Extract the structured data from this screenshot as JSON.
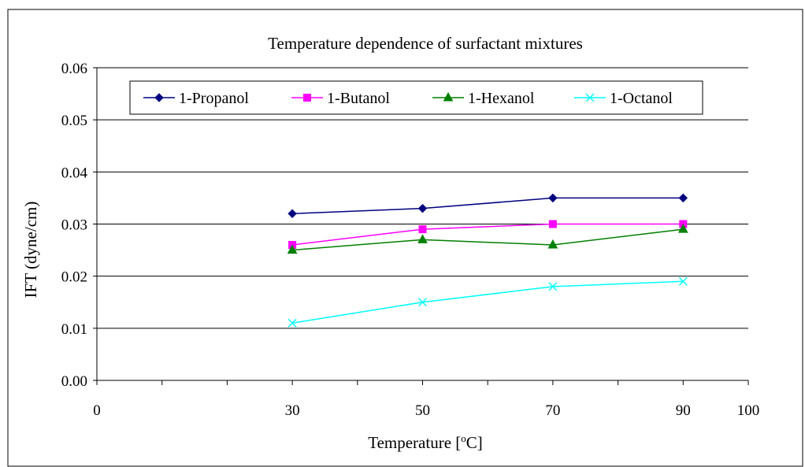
{
  "chart_data": {
    "type": "line",
    "title": "Temperature dependence of surfactant mixtures",
    "xlabel_parts": [
      "Temperature [",
      "o",
      "C]"
    ],
    "ylabel": "IFT (dyne/cm)",
    "xlim": [
      0,
      100
    ],
    "ylim": [
      0,
      0.06
    ],
    "x_ticks": [
      0,
      30,
      50,
      70,
      90,
      100
    ],
    "x_minor_ticks": [
      10,
      20,
      40,
      60,
      80
    ],
    "y_ticks": [
      "0.00",
      "0.01",
      "0.02",
      "0.03",
      "0.04",
      "0.05",
      "0.06"
    ],
    "grid": "horizontal",
    "legend_position": "top",
    "x": [
      30,
      50,
      70,
      90
    ],
    "series": [
      {
        "name": "1-Propanol",
        "values": [
          0.032,
          0.033,
          0.035,
          0.035
        ],
        "color": "#000080",
        "marker": "diamond"
      },
      {
        "name": "1-Butanol",
        "values": [
          0.026,
          0.029,
          0.03,
          0.03
        ],
        "color": "#FF00FF",
        "marker": "square"
      },
      {
        "name": "1-Hexanol",
        "values": [
          0.025,
          0.027,
          0.026,
          0.029
        ],
        "color": "#008000",
        "marker": "triangle"
      },
      {
        "name": "1-Octanol",
        "values": [
          0.011,
          0.015,
          0.018,
          0.019
        ],
        "color": "#00FFFF",
        "marker": "x"
      }
    ]
  }
}
